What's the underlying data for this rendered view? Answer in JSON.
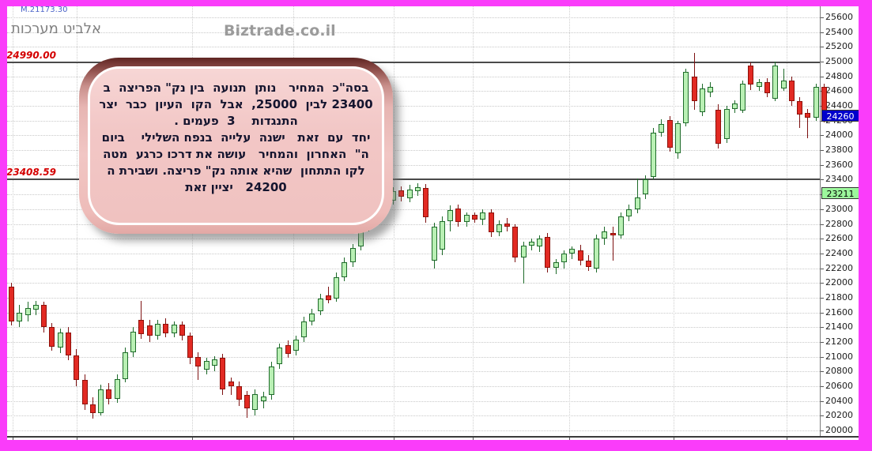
{
  "header": {
    "indicator": "M.21173.30",
    "title": "אלביט מערכות",
    "watermark": "Biztrade.co.il"
  },
  "annotation": {
    "lines": [
      "בסה\"כ  המחיר   נותן  תנועה  בין נק\" הפריצה  ב",
      "23400 לבין  25000,  אבל  הקו  העיון  כבר  יצר",
      "התנגדות    3  פעמים .",
      "יחד  עם  זאת   ישנה  עלייה  בנפח השלילי    ביום",
      "ה\"  האחרון  והמחיר   עושה את דרכו כרגע  מטה",
      "לקו התתחון  שהיא אותה נק\" פריצה. ושבירת ה",
      "24200   יציין זאת"
    ]
  },
  "colors": {
    "frame": "#fa3cfa",
    "up_fill": "#b9f0b4",
    "up_border": "#1e6b2a",
    "down_fill": "#e22a23",
    "down_border": "#8d1009",
    "tag_blue_bg": "#0000cc",
    "tag_green_bg": "#9cf79c",
    "line_label_red": "#d40000"
  },
  "chart_data": {
    "type": "candlestick",
    "title": "אלביט מערכות",
    "ylabel": "",
    "xlabel": "",
    "ylim": [
      20000,
      25600
    ],
    "y_tick_step": 200,
    "grid": true,
    "y_ticks": [
      25600,
      25400,
      25200,
      25000,
      24800,
      24600,
      24400,
      24200,
      24000,
      23800,
      23600,
      23400,
      23200,
      23000,
      22800,
      22600,
      22400,
      22200,
      22000,
      21800,
      21600,
      21400,
      21200,
      21000,
      20800,
      20600,
      20400,
      20200,
      20000
    ],
    "h_lines": [
      {
        "value": 24990.0,
        "label": "24990.00"
      },
      {
        "value": 23408.59,
        "label": "23408.59"
      }
    ],
    "price_tags": [
      {
        "label": "24260",
        "value": 24260,
        "bg": "#0000cc",
        "fg": "#ffffff"
      },
      {
        "label": "23211",
        "value": 23211,
        "bg": "#9cf79c",
        "fg": "#000000"
      }
    ],
    "last_price": 24260,
    "candles_format": [
      "open",
      "high",
      "low",
      "close"
    ],
    "candles": [
      [
        21950,
        22000,
        21420,
        21480
      ],
      [
        21480,
        21700,
        21400,
        21600
      ],
      [
        21560,
        21740,
        21480,
        21660
      ],
      [
        21640,
        21760,
        21560,
        21700
      ],
      [
        21700,
        21740,
        21330,
        21400
      ],
      [
        21400,
        21460,
        21080,
        21140
      ],
      [
        21120,
        21380,
        21050,
        21330
      ],
      [
        21330,
        21400,
        20950,
        21020
      ],
      [
        21020,
        21100,
        20600,
        20680
      ],
      [
        20680,
        20760,
        20280,
        20350
      ],
      [
        20350,
        20450,
        20160,
        20240
      ],
      [
        20240,
        20620,
        20200,
        20560
      ],
      [
        20560,
        20640,
        20350,
        20430
      ],
      [
        20430,
        20760,
        20380,
        20700
      ],
      [
        20700,
        21120,
        20650,
        21060
      ],
      [
        21060,
        21400,
        21000,
        21340
      ],
      [
        21500,
        21760,
        21240,
        21310
      ],
      [
        21420,
        21500,
        21200,
        21290
      ],
      [
        21290,
        21500,
        21230,
        21450
      ],
      [
        21450,
        21520,
        21260,
        21320
      ],
      [
        21320,
        21480,
        21260,
        21430
      ],
      [
        21430,
        21480,
        21220,
        21280
      ],
      [
        21280,
        21330,
        20900,
        20980
      ],
      [
        21000,
        21060,
        20680,
        20870
      ],
      [
        20820,
        20990,
        20760,
        20940
      ],
      [
        20880,
        21010,
        20800,
        20960
      ],
      [
        20990,
        21040,
        20480,
        20560
      ],
      [
        20660,
        20720,
        20480,
        20600
      ],
      [
        20600,
        20660,
        20330,
        20420
      ],
      [
        20480,
        20540,
        20170,
        20300
      ],
      [
        20280,
        20560,
        20200,
        20490
      ],
      [
        20400,
        20520,
        20300,
        20460
      ],
      [
        20480,
        20930,
        20420,
        20870
      ],
      [
        20900,
        21180,
        20840,
        21120
      ],
      [
        21160,
        21220,
        20980,
        21040
      ],
      [
        21080,
        21290,
        21020,
        21230
      ],
      [
        21260,
        21540,
        21200,
        21480
      ],
      [
        21480,
        21650,
        21420,
        21590
      ],
      [
        21620,
        21850,
        21560,
        21790
      ],
      [
        21830,
        21950,
        21720,
        21770
      ],
      [
        21790,
        22140,
        21740,
        22080
      ],
      [
        22080,
        22340,
        22020,
        22280
      ],
      [
        22280,
        22530,
        22220,
        22470
      ],
      [
        22500,
        22880,
        22440,
        22820
      ],
      [
        22860,
        23080,
        22700,
        23020
      ],
      [
        23010,
        23370,
        22950,
        23310
      ],
      [
        23370,
        23520,
        23040,
        23090
      ],
      [
        23120,
        23300,
        23060,
        23240
      ],
      [
        23250,
        23310,
        23100,
        23170
      ],
      [
        23150,
        23330,
        23090,
        23270
      ],
      [
        23240,
        23350,
        23180,
        23300
      ],
      [
        23290,
        23340,
        22820,
        22890
      ],
      [
        22300,
        22820,
        22200,
        22760
      ],
      [
        22450,
        22900,
        22380,
        22840
      ],
      [
        22840,
        23050,
        22700,
        22990
      ],
      [
        23010,
        23060,
        22760,
        22830
      ],
      [
        22830,
        22960,
        22760,
        22920
      ],
      [
        22920,
        22960,
        22820,
        22860
      ],
      [
        22860,
        23000,
        22780,
        22950
      ],
      [
        22950,
        23000,
        22620,
        22690
      ],
      [
        22690,
        22850,
        22630,
        22800
      ],
      [
        22810,
        22880,
        22700,
        22760
      ],
      [
        22760,
        22800,
        22280,
        22350
      ],
      [
        22350,
        22560,
        21990,
        22510
      ],
      [
        22510,
        22600,
        22440,
        22560
      ],
      [
        22500,
        22640,
        22420,
        22600
      ],
      [
        22620,
        22680,
        22140,
        22210
      ],
      [
        22210,
        22320,
        22120,
        22280
      ],
      [
        22280,
        22440,
        22200,
        22400
      ],
      [
        22400,
        22500,
        22320,
        22460
      ],
      [
        22440,
        22520,
        22240,
        22300
      ],
      [
        22300,
        22380,
        22160,
        22220
      ],
      [
        22200,
        22660,
        22140,
        22600
      ],
      [
        22600,
        22760,
        22520,
        22700
      ],
      [
        22680,
        22760,
        22300,
        22650
      ],
      [
        22650,
        22960,
        22600,
        22900
      ],
      [
        22900,
        23060,
        22840,
        23000
      ],
      [
        23000,
        23420,
        22940,
        23160
      ],
      [
        23200,
        23460,
        23140,
        23400
      ],
      [
        23440,
        24100,
        23400,
        24040
      ],
      [
        24040,
        24220,
        23980,
        24150
      ],
      [
        24210,
        24260,
        23780,
        23830
      ],
      [
        23760,
        24200,
        23680,
        24170
      ],
      [
        24170,
        24900,
        24120,
        24860
      ],
      [
        24800,
        25120,
        24350,
        24460
      ],
      [
        24320,
        24700,
        24260,
        24640
      ],
      [
        24580,
        24720,
        24520,
        24660
      ],
      [
        24350,
        24420,
        23820,
        23890
      ],
      [
        23950,
        24400,
        23900,
        24360
      ],
      [
        24360,
        24480,
        24300,
        24430
      ],
      [
        24340,
        24740,
        24300,
        24700
      ],
      [
        24950,
        24990,
        24620,
        24690
      ],
      [
        24660,
        24760,
        24600,
        24720
      ],
      [
        24720,
        24780,
        24520,
        24570
      ],
      [
        24500,
        25000,
        24460,
        24950
      ],
      [
        24640,
        24900,
        24600,
        24740
      ],
      [
        24740,
        24800,
        24400,
        24460
      ],
      [
        24460,
        24520,
        24100,
        24280
      ],
      [
        24300,
        24360,
        23960,
        24240
      ],
      [
        24240,
        24700,
        24200,
        24660
      ],
      [
        24660,
        24700,
        24180,
        24260
      ]
    ],
    "legend_position": "none",
    "x_axis_labels_visible": false
  }
}
